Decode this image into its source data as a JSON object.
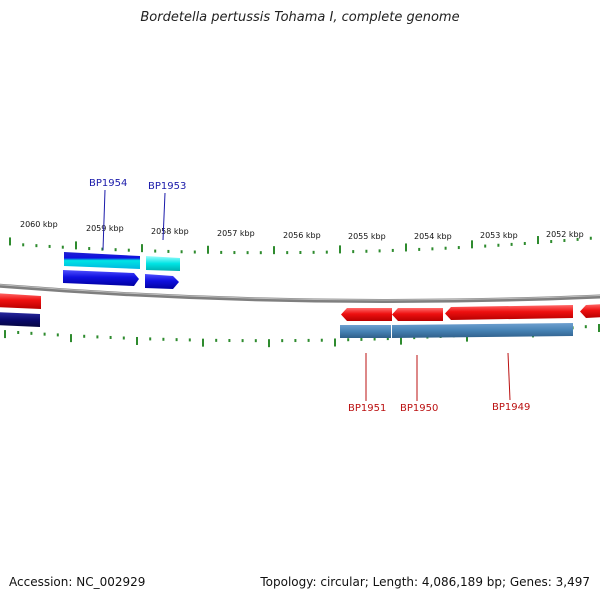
{
  "title": "Bordetella pertussis Tohama I, complete genome",
  "footer": {
    "accession": "Accession: NC_002929",
    "topology": "Topology: circular; Length: 4,086,189 bp; Genes: 3,497"
  },
  "colors": {
    "backbone": "#7f7f7f",
    "ticks": "#2e8b2e",
    "forward_label": "#1a1aaa",
    "reverse_label": "#bb1111",
    "forward_cds": "#1010e0",
    "forward_gene": "#00e5e5",
    "reverse_cds": "#ee1010",
    "reverse_gene": "#4682b4",
    "dark_gene": "#0a0a6e"
  },
  "scale": {
    "major_ticks_kbp": [
      {
        "label": "2060 kbp"
      },
      {
        "label": "2059 kbp"
      },
      {
        "label": "2058 kbp"
      },
      {
        "label": "2057 kbp"
      },
      {
        "label": "2056 kbp"
      },
      {
        "label": "2055 kbp"
      },
      {
        "label": "2054 kbp"
      },
      {
        "label": "2053 kbp"
      },
      {
        "label": "2052 kbp"
      }
    ]
  },
  "gene_labels": [
    {
      "name": "BP1954",
      "strand": "forward"
    },
    {
      "name": "BP1953",
      "strand": "forward"
    },
    {
      "name": "BP1951",
      "strand": "reverse"
    },
    {
      "name": "BP1950",
      "strand": "reverse"
    },
    {
      "name": "BP1949",
      "strand": "reverse"
    }
  ]
}
